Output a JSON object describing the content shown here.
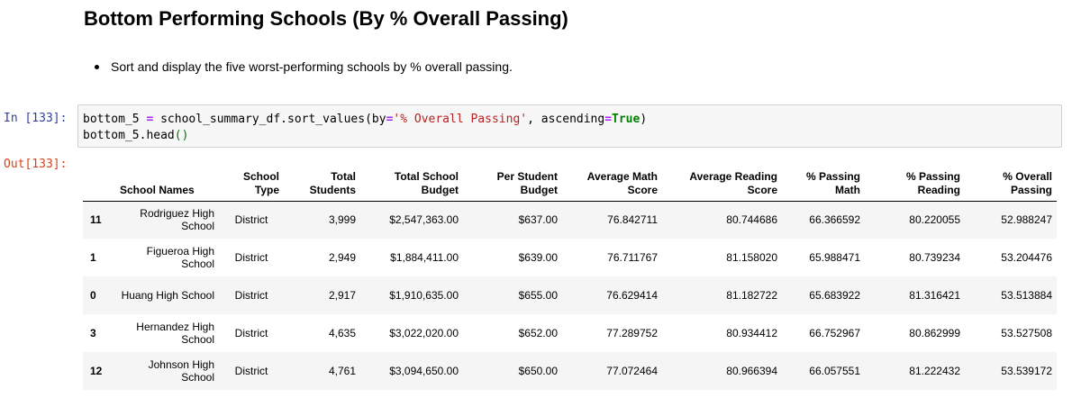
{
  "markdown": {
    "heading": "Bottom Performing Schools (By % Overall Passing)",
    "bullet": "Sort and display the five worst-performing schools by % overall passing."
  },
  "input_cell": {
    "prompt": "In [133]:",
    "code_line1": {
      "t1": "bottom_5 ",
      "t2": "=",
      "t3": " school_summary_df.sort_values(by",
      "t4": "=",
      "t5": "'% Overall Passing'",
      "t6": ", ascending",
      "t7": "=",
      "t8": "True",
      "t9": ")"
    },
    "code_line2": {
      "t1": "bottom_5.head",
      "t2": "()"
    }
  },
  "output_cell": {
    "prompt": "Out[133]:"
  },
  "dataframe": {
    "index_name": "School Names",
    "columns": [
      "School Type",
      "Total Students",
      "Total School Budget",
      "Per Student Budget",
      "Average Math Score",
      "Average Reading Score",
      "% Passing Math",
      "% Passing Reading",
      "% Overall Passing"
    ],
    "rows": [
      {
        "index": "11",
        "name": "Rodriguez High School",
        "values": [
          "District",
          "3,999",
          "$2,547,363.00",
          "$637.00",
          "76.842711",
          "80.744686",
          "66.366592",
          "80.220055",
          "52.988247"
        ]
      },
      {
        "index": "1",
        "name": "Figueroa High School",
        "values": [
          "District",
          "2,949",
          "$1,884,411.00",
          "$639.00",
          "76.711767",
          "81.158020",
          "65.988471",
          "80.739234",
          "53.204476"
        ]
      },
      {
        "index": "0",
        "name": "Huang High School",
        "values": [
          "District",
          "2,917",
          "$1,910,635.00",
          "$655.00",
          "76.629414",
          "81.182722",
          "65.683922",
          "81.316421",
          "53.513884"
        ]
      },
      {
        "index": "3",
        "name": "Hernandez High School",
        "values": [
          "District",
          "4,635",
          "$3,022,020.00",
          "$652.00",
          "77.289752",
          "80.934412",
          "66.752967",
          "80.862999",
          "53.527508"
        ]
      },
      {
        "index": "12",
        "name": "Johnson High School",
        "values": [
          "District",
          "4,761",
          "$3,094,650.00",
          "$650.00",
          "77.072464",
          "80.966394",
          "66.057551",
          "81.222432",
          "53.539172"
        ]
      }
    ]
  }
}
